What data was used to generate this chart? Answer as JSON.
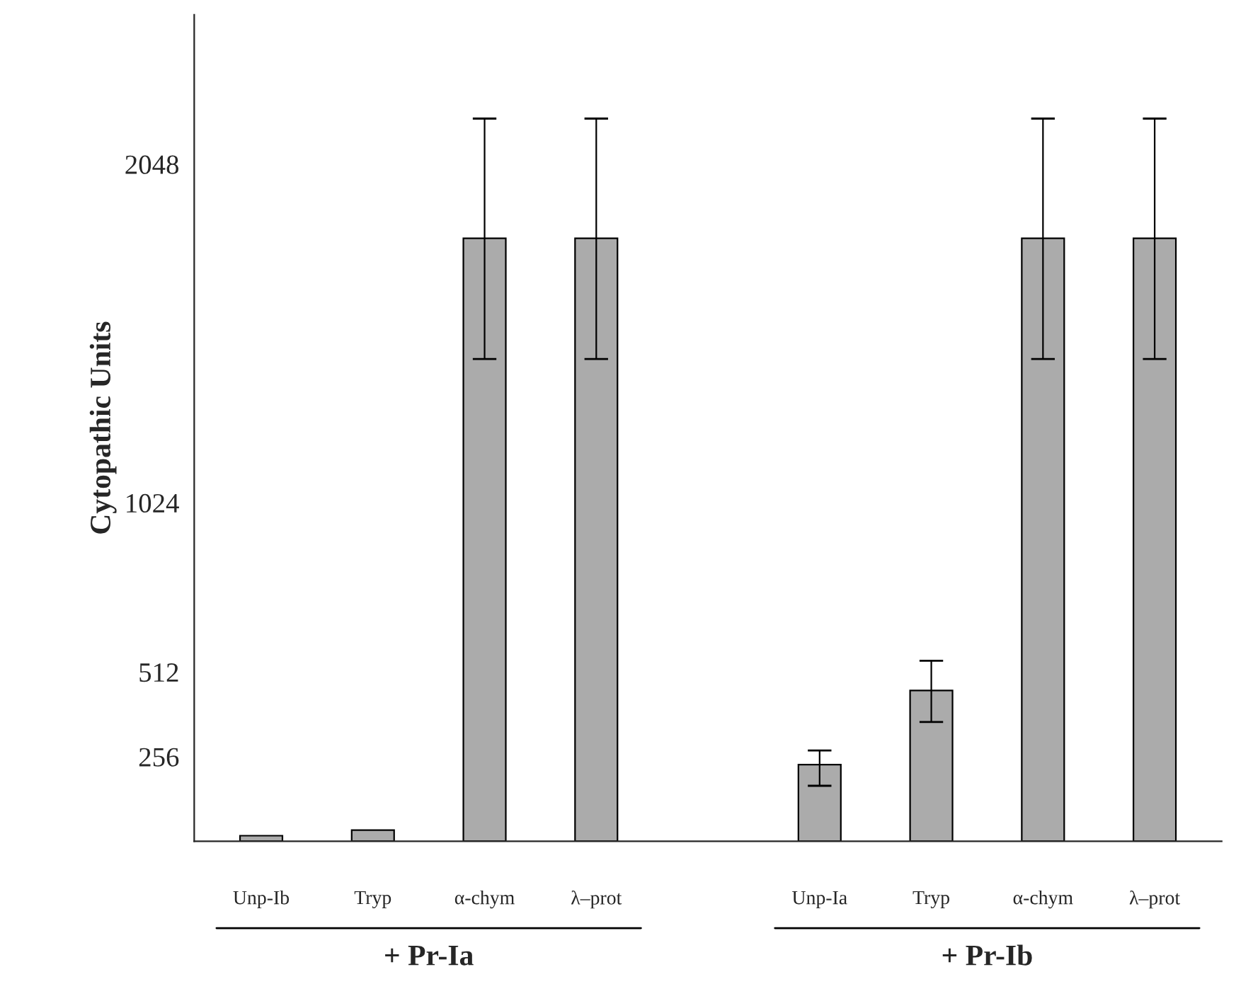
{
  "chart_data": {
    "type": "bar",
    "ylabel": "Cytopathic Units",
    "categories": [
      "Unp-Ib",
      "Tryp",
      "α-chym",
      "λ–prot",
      null,
      "Unp-Ia",
      "Tryp",
      "α-chym",
      "λ–prot"
    ],
    "values": [
      17,
      34,
      1824,
      1824,
      null,
      232,
      456,
      1824,
      1824
    ],
    "errors": [
      null,
      null,
      [
        1459,
        2186
      ],
      [
        1459,
        2186
      ],
      null,
      [
        168,
        275
      ],
      [
        361,
        546
      ],
      [
        1459,
        2186
      ],
      [
        1459,
        2186
      ]
    ],
    "color": "#ababab",
    "ylim": [
      0,
      2500
    ],
    "yticks": [
      256,
      512,
      1024,
      2048
    ],
    "grid": false,
    "annotations": [
      "+ Pr-Ia",
      "+ Pr-Ib"
    ]
  }
}
